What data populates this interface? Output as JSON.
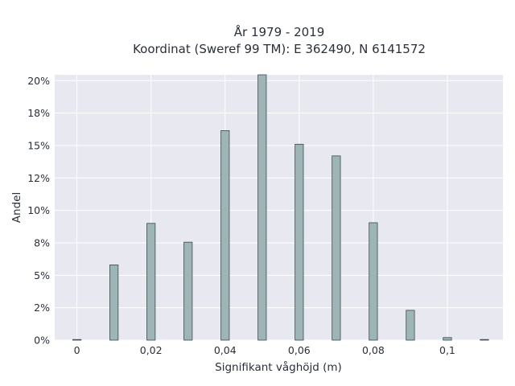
{
  "chart_data": {
    "type": "bar",
    "title_line1": "År 1979 - 2019",
    "title_line2": "Koordinat (Sweref 99 TM): E 362490, N 6141572",
    "xlabel": "Signifikant våghöjd (m)",
    "ylabel": "Andel",
    "x_ticks": [
      "0",
      "0,02",
      "0,04",
      "0,06",
      "0,08",
      "0,1"
    ],
    "y_ticks": [
      "0%",
      "2%",
      "5%",
      "8%",
      "10%",
      "12%",
      "15%",
      "18%",
      "20%"
    ],
    "xlim": [
      -0.006,
      0.115
    ],
    "ylim": [
      0,
      0.2045
    ],
    "grid": true,
    "bar_color": "#9db5b6",
    "bar_edge_color": "#3d4a4c",
    "background_color": "#e8e8f0",
    "x": [
      0.0,
      0.01,
      0.02,
      0.03,
      0.04,
      0.05,
      0.06,
      0.07,
      0.08,
      0.09,
      0.1,
      0.11
    ],
    "values": [
      0.0005,
      0.058,
      0.09,
      0.0755,
      0.1615,
      0.2045,
      0.151,
      0.142,
      0.0905,
      0.023,
      0.002,
      0.0005
    ]
  }
}
